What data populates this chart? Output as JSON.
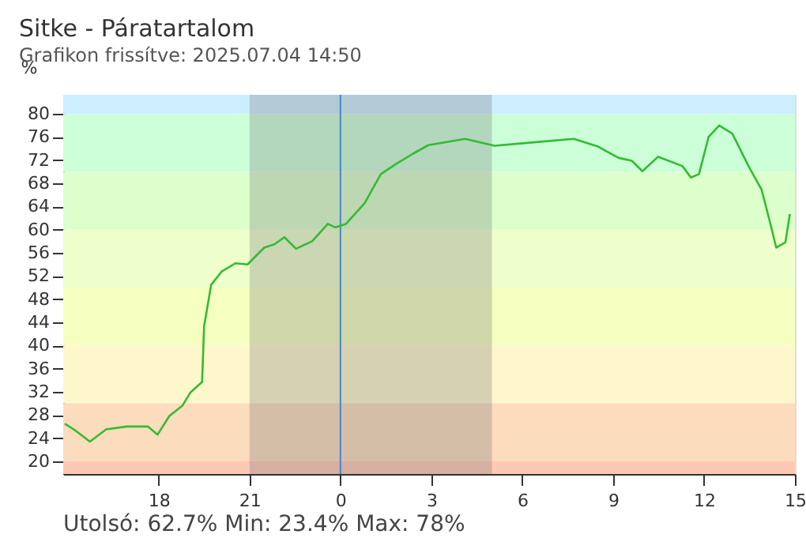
{
  "chart_data": {
    "type": "line",
    "title": "Sitke - Páratartalom",
    "subtitle": "Grafikon frissítve: 2025.07.04 14:50",
    "ylabel": "%",
    "x": [
      "2025-07-03T14:54",
      "2025-07-03T15:12",
      "2025-07-03T15:44",
      "2025-07-03T16:16",
      "2025-07-03T16:57",
      "2025-07-03T17:39",
      "2025-07-03T17:58",
      "2025-07-03T18:21",
      "2025-07-03T18:47",
      "2025-07-03T19:03",
      "2025-07-03T19:26",
      "2025-07-03T19:30",
      "2025-07-03T19:44",
      "2025-07-03T20:05",
      "2025-07-03T20:32",
      "2025-07-03T20:56",
      "2025-07-03T21:29",
      "2025-07-03T21:50",
      "2025-07-03T22:09",
      "2025-07-03T22:32",
      "2025-07-03T23:04",
      "2025-07-03T23:35",
      "2025-07-03T23:50",
      "2025-07-04T00:11",
      "2025-07-04T00:48",
      "2025-07-04T01:20",
      "2025-07-04T01:51",
      "2025-07-04T02:23",
      "2025-07-04T02:54",
      "2025-07-04T04:07",
      "2025-07-04T05:05",
      "2025-07-04T06:23",
      "2025-07-04T07:42",
      "2025-07-04T08:29",
      "2025-07-04T09:11",
      "2025-07-04T09:37",
      "2025-07-04T09:58",
      "2025-07-04T10:29",
      "2025-07-04T11:17",
      "2025-07-04T11:34",
      "2025-07-04T11:50",
      "2025-07-04T12:09",
      "2025-07-04T12:30",
      "2025-07-04T12:56",
      "2025-07-04T13:28",
      "2025-07-04T13:54",
      "2025-07-04T14:10",
      "2025-07-04T14:23",
      "2025-07-04T14:41",
      "2025-07-04T14:50"
    ],
    "series": [
      {
        "color": "#33bb33",
        "values": [
          26.5,
          25.5,
          23.4,
          25.5,
          26,
          26,
          24.6,
          27.8,
          29.6,
          31.9,
          33.7,
          43.3,
          50.5,
          52.8,
          54.2,
          54.0,
          56.9,
          57.5,
          58.7,
          56.7,
          58.0,
          61.0,
          60.4,
          61.0,
          64.6,
          69.6,
          71.4,
          73.1,
          74.6,
          75.7,
          74.5,
          75.1,
          75.7,
          74.4,
          72.4,
          71.9,
          70.1,
          72.6,
          71,
          69.0,
          69.6,
          76.0,
          78,
          76.6,
          71,
          66.9,
          61.5,
          56.9,
          57.8,
          62.7
        ]
      }
    ],
    "xlim": [
      "2025-07-03T14:51",
      "2025-07-04T15:00"
    ],
    "xticks": [
      {
        "value": "2025-07-03T18:00",
        "label": "18"
      },
      {
        "value": "2025-07-03T21:00",
        "label": "21"
      },
      {
        "value": "2025-07-04T00:00",
        "label": "0"
      },
      {
        "value": "2025-07-04T03:00",
        "label": "3"
      },
      {
        "value": "2025-07-04T06:00",
        "label": "6"
      },
      {
        "value": "2025-07-04T09:00",
        "label": "9"
      },
      {
        "value": "2025-07-04T12:00",
        "label": "12"
      },
      {
        "value": "2025-07-04T15:00",
        "label": "15"
      }
    ],
    "ylim": [
      17.8,
      83.3
    ],
    "yticks": [
      20,
      24,
      28,
      32,
      36,
      40,
      44,
      48,
      52,
      56,
      60,
      64,
      68,
      72,
      76,
      80
    ],
    "bands": [
      {
        "axis": "y",
        "from": 80,
        "to": 83.3,
        "color": "#cceeff"
      },
      {
        "axis": "y",
        "from": 70,
        "to": 80,
        "color": "#ccffd8"
      },
      {
        "axis": "y",
        "from": 60,
        "to": 70,
        "color": "#dcffcc"
      },
      {
        "axis": "y",
        "from": 50,
        "to": 60,
        "color": "#eeffcc"
      },
      {
        "axis": "y",
        "from": 40,
        "to": 50,
        "color": "#f5ffc0"
      },
      {
        "axis": "y",
        "from": 30,
        "to": 40,
        "color": "#fff7cc"
      },
      {
        "axis": "y",
        "from": 20,
        "to": 30,
        "color": "#fbdcbc"
      },
      {
        "axis": "y",
        "from": 17.8,
        "to": 20,
        "color": "#fcc8b4"
      },
      {
        "axis": "x",
        "from": "2025-07-03T21:00",
        "to": "2025-07-04T05:00",
        "color": "#7a7a7a"
      }
    ],
    "ref_lines": [
      {
        "axis": "x",
        "value": "2025-07-04T00:00",
        "color": "#4488cc"
      }
    ],
    "annotations": [
      "Utolsó: 62.7%  Min: 23.4%  Max: 78%"
    ],
    "grid": false
  }
}
